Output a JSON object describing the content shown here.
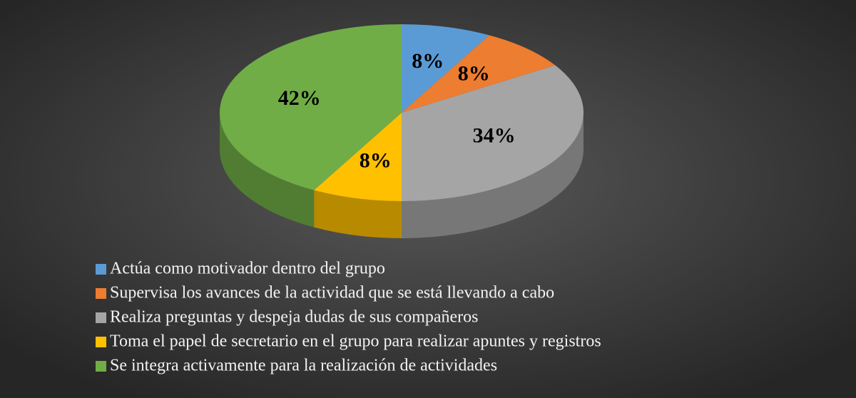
{
  "chart_data": {
    "type": "pie",
    "categories": [
      "Actúa como motivador dentro del grupo",
      "Supervisa los avances de la actividad que se está llevando a cabo",
      "Realiza preguntas y despeja dudas de sus compañeros",
      "Toma el papel de secretario en el grupo para realizar apuntes y registros",
      "Se integra activamente para la realización de actividades"
    ],
    "values": [
      8,
      8,
      34,
      8,
      42
    ],
    "value_labels": [
      "8%",
      "8%",
      "34%",
      "8%",
      "42%"
    ],
    "colors": [
      "#5b9bd5",
      "#ed7d31",
      "#a5a5a5",
      "#ffc000",
      "#70ad47"
    ],
    "legend": "bottom"
  }
}
